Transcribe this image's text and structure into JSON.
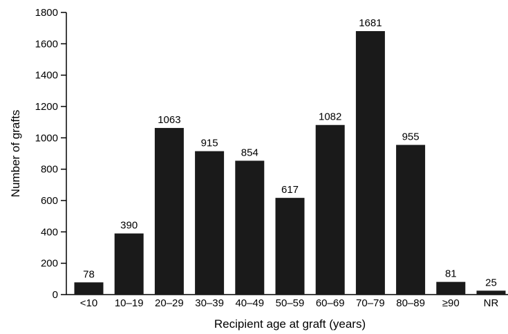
{
  "chart_data": {
    "type": "bar",
    "categories": [
      "<10",
      "10–19",
      "20–29",
      "30–39",
      "40–49",
      "50–59",
      "60–69",
      "70–79",
      "80–89",
      "≥90",
      "NR"
    ],
    "values": [
      78,
      390,
      1063,
      915,
      854,
      617,
      1082,
      1681,
      955,
      81,
      25
    ],
    "data_labels": [
      "78",
      "390",
      "1063",
      "915",
      "854",
      "617",
      "1082",
      "1681",
      "955",
      "81",
      "25"
    ],
    "title": "",
    "xlabel": "Recipient age at graft (years)",
    "ylabel": "Number of grafts",
    "ylim": [
      0,
      1800
    ],
    "yticks": [
      0,
      200,
      400,
      600,
      800,
      1000,
      1200,
      1400,
      1600,
      1800
    ],
    "ytick_labels": [
      "0",
      "200",
      "400",
      "600",
      "800",
      "1000",
      "1200",
      "1400",
      "1600",
      "1800"
    ],
    "grid": false,
    "bar_color": "#1a1a1a",
    "axis_color": "#000000"
  }
}
